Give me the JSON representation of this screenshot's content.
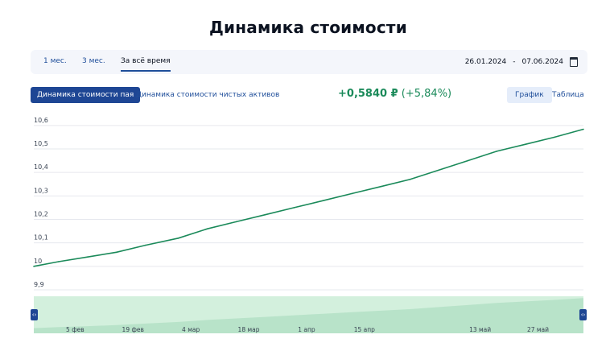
{
  "page": {
    "title": "Динамика стоимости"
  },
  "period": {
    "tabs": [
      "1 мес.",
      "3 мес.",
      "За всё время"
    ],
    "active_tab": "За всё время",
    "date_from": "26.01.2024",
    "date_sep": "-",
    "date_to": "07.06.2024"
  },
  "modes": {
    "primary": "Динамика стоимости пая",
    "secondary": "Динамика стоимости чистых активов"
  },
  "change": {
    "abs": "+0,5840 ₽",
    "pct": "(+5,84%)"
  },
  "views": {
    "active": "График",
    "other": "Таблица"
  },
  "colors": {
    "line": "#1b8a5a",
    "accent": "#1e4694",
    "navigator_fill": "#d3f0dd"
  },
  "chart_data": {
    "type": "line",
    "ylim": [
      9.9,
      10.62
    ],
    "yticks": [
      "10,6",
      "10,5",
      "10,4",
      "10,3",
      "10,2",
      "10,1",
      "10",
      "9,9"
    ],
    "ytick_values": [
      10.6,
      10.5,
      10.4,
      10.3,
      10.2,
      10.1,
      10.0,
      9.9
    ],
    "xtick_labels": [
      "5 фев",
      "19 фев",
      "4 мар",
      "18 мар",
      "1 апр",
      "15 апр",
      "13 май",
      "27 май"
    ],
    "xtick_dates": [
      "2024-02-05",
      "2024-02-19",
      "2024-03-04",
      "2024-03-18",
      "2024-04-01",
      "2024-04-15",
      "2024-05-13",
      "2024-05-27"
    ],
    "x_start": "2024-01-26",
    "x_end": "2024-06-07",
    "series": [
      {
        "x": [
          "2024-01-26",
          "2024-02-01",
          "2024-02-08",
          "2024-02-15",
          "2024-02-22",
          "2024-03-01",
          "2024-03-08",
          "2024-03-15",
          "2024-03-22",
          "2024-03-29",
          "2024-04-05",
          "2024-04-12",
          "2024-04-19",
          "2024-04-26",
          "2024-05-03",
          "2024-05-10",
          "2024-05-17",
          "2024-05-24",
          "2024-05-31",
          "2024-06-07"
        ],
        "y": [
          10.0,
          10.02,
          10.04,
          10.06,
          10.09,
          10.12,
          10.16,
          10.19,
          10.22,
          10.25,
          10.28,
          10.31,
          10.34,
          10.37,
          10.41,
          10.45,
          10.49,
          10.52,
          10.55,
          10.584
        ]
      }
    ],
    "grid": true
  }
}
